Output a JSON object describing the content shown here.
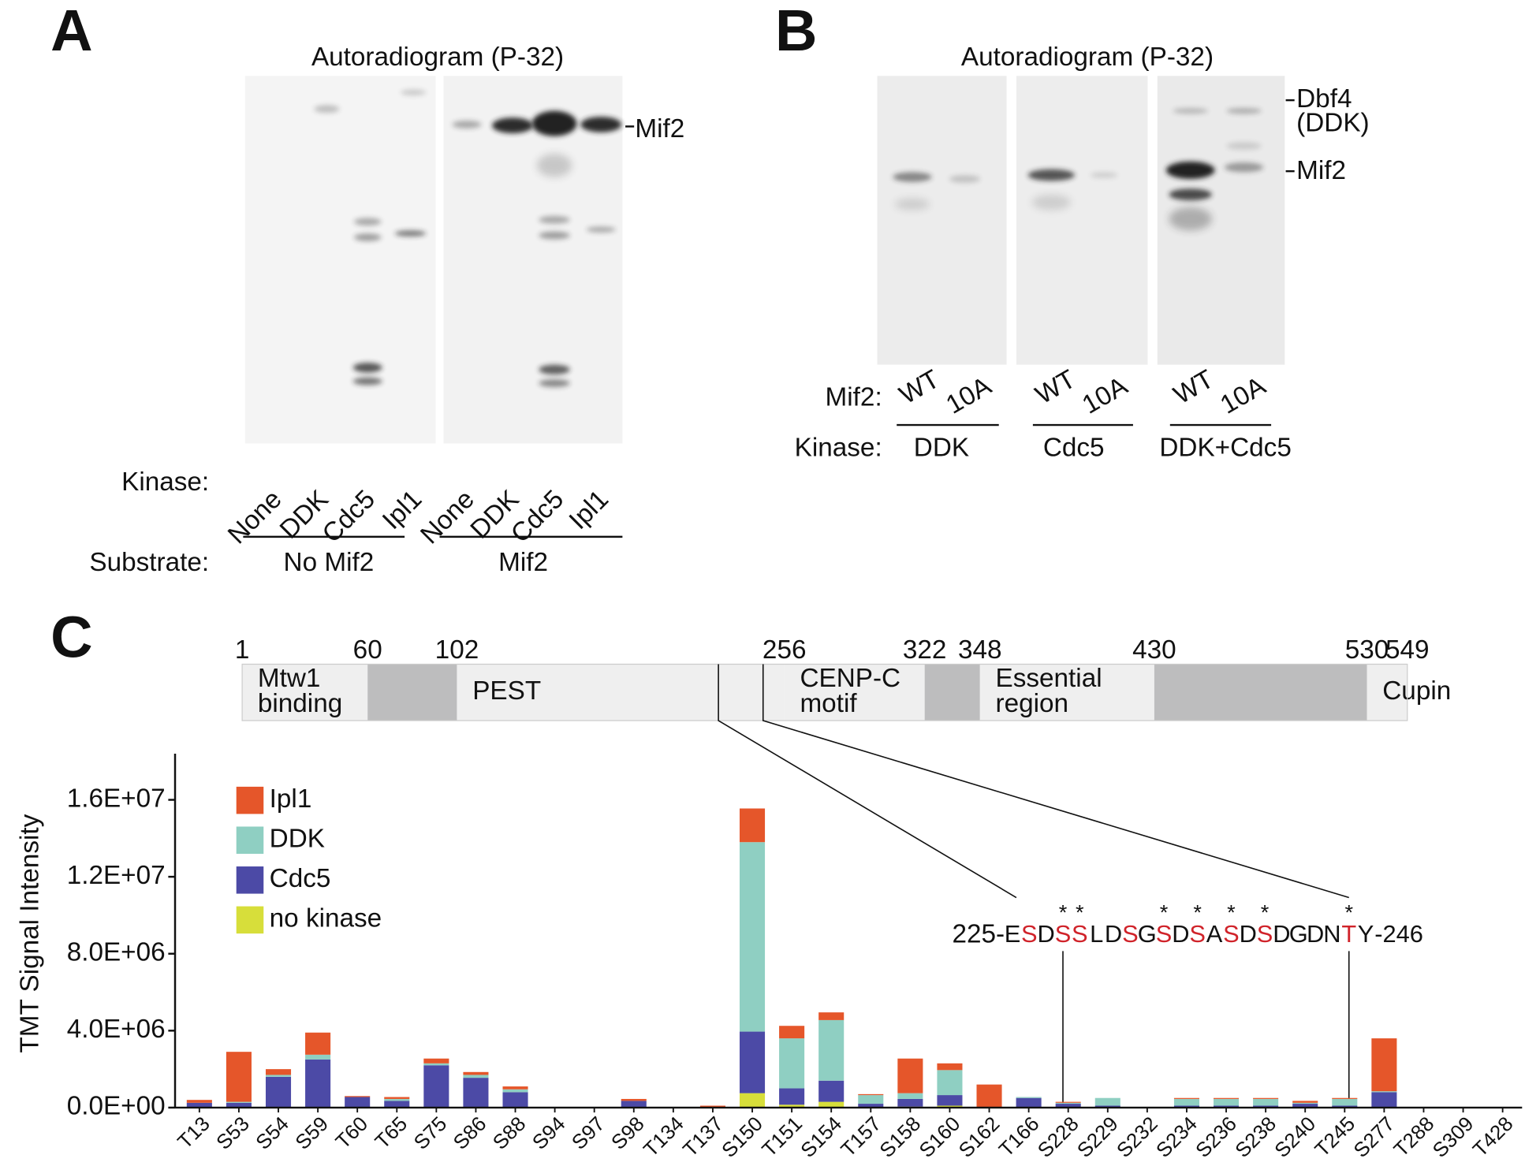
{
  "panel_a": {
    "letter": "A",
    "title": "Autoradiogram (P-32)",
    "band_label": "Mif2",
    "kinase_label": "Kinase:",
    "lanes": [
      "None",
      "DDK",
      "Cdc5",
      "Ipl1",
      "None",
      "DDK",
      "Cdc5",
      "Ipl1"
    ],
    "substrate_label": "Substrate:",
    "groups": [
      "No Mif2",
      "Mif2"
    ]
  },
  "panel_b": {
    "letter": "B",
    "title": "Autoradiogram (P-32)",
    "band_labels": [
      "Dbf4",
      "(DDK)",
      "Mif2"
    ],
    "mif2_label": "Mif2:",
    "lanes": [
      "WT",
      "10A",
      "WT",
      "10A",
      "WT",
      "10A"
    ],
    "kinase_label": "Kinase:",
    "groups": [
      "DDK",
      "Cdc5",
      "DDK+Cdc5"
    ]
  },
  "domain_map": {
    "letter": "C",
    "positions": [
      1,
      60,
      102,
      256,
      322,
      348,
      430,
      530,
      549
    ],
    "domains": [
      {
        "start": 1,
        "end": 60,
        "lines": [
          "Mtw1",
          "binding"
        ]
      },
      {
        "start": 60,
        "end": 102,
        "gray": true
      },
      {
        "start": 102,
        "end": 256,
        "lines": [
          "PEST"
        ]
      },
      {
        "start": 256,
        "end": 322,
        "lines": [
          "CENP-C",
          "motif"
        ]
      },
      {
        "start": 322,
        "end": 348,
        "gray": true
      },
      {
        "start": 348,
        "end": 430,
        "lines": [
          "Essential",
          "region"
        ]
      },
      {
        "start": 430,
        "end": 530,
        "gray": true
      },
      {
        "start": 530,
        "end": 549,
        "lines": [
          "Cupin"
        ]
      }
    ],
    "sequence": {
      "start_label": "225-",
      "end_label": "-246",
      "start": 225,
      "end": 246,
      "residues": [
        "E",
        "S",
        "D",
        "S",
        "S",
        "L",
        "D",
        "S",
        "G",
        "S",
        "D",
        "S",
        "A",
        "S",
        "D",
        "S",
        "D",
        "G",
        "D",
        "N",
        "T",
        "Y"
      ],
      "red": [
        1,
        3,
        4,
        7,
        9,
        11,
        13,
        15,
        20
      ],
      "starred": [
        3,
        4,
        9,
        11,
        13,
        15,
        20
      ],
      "star": "*",
      "red_color": "#d0232a"
    }
  },
  "chart_data": {
    "type": "stacked_bar",
    "y_label": "TMT Signal Intensity",
    "categories": [
      "T13",
      "S53",
      "S54",
      "S59",
      "T60",
      "T65",
      "S75",
      "S86",
      "S88",
      "S94",
      "S97",
      "S98",
      "T134",
      "T137",
      "S150",
      "T151",
      "S154",
      "T157",
      "S158",
      "S160",
      "S162",
      "T166",
      "S228",
      "S229",
      "S232",
      "S234",
      "S236",
      "S238",
      "S240",
      "T245",
      "S277",
      "T288",
      "S309",
      "T428"
    ],
    "series": [
      {
        "name": "Ipl1",
        "color": "#e5562a",
        "values": [
          150000,
          2600000,
          300000,
          1150000,
          50000,
          100000,
          250000,
          150000,
          150000,
          0,
          0,
          100000,
          0,
          100000,
          1750000,
          650000,
          400000,
          50000,
          1800000,
          350000,
          1200000,
          0,
          50000,
          0,
          0,
          50000,
          50000,
          50000,
          100000,
          50000,
          2750000,
          0,
          0,
          0
        ]
      },
      {
        "name": "DDK",
        "color": "#8fcfc2",
        "values": [
          0,
          50000,
          100000,
          250000,
          0,
          100000,
          100000,
          150000,
          150000,
          0,
          0,
          0,
          0,
          0,
          9850000,
          2600000,
          3150000,
          450000,
          300000,
          1300000,
          0,
          50000,
          50000,
          400000,
          0,
          350000,
          350000,
          350000,
          50000,
          350000,
          50000,
          0,
          0,
          0
        ]
      },
      {
        "name": "Cdc5",
        "color": "#4c4aa6",
        "values": [
          250000,
          250000,
          1600000,
          2500000,
          550000,
          350000,
          2200000,
          1550000,
          800000,
          0,
          0,
          350000,
          0,
          0,
          3200000,
          850000,
          1100000,
          200000,
          400000,
          550000,
          0,
          500000,
          200000,
          100000,
          0,
          100000,
          100000,
          100000,
          200000,
          100000,
          800000,
          0,
          0,
          0
        ]
      },
      {
        "name": "no kinase",
        "color": "#d7de3a",
        "values": [
          0,
          0,
          0,
          0,
          0,
          0,
          0,
          0,
          0,
          0,
          0,
          0,
          0,
          0,
          750000,
          150000,
          300000,
          0,
          50000,
          100000,
          0,
          0,
          0,
          0,
          0,
          0,
          0,
          0,
          0,
          0,
          0,
          0,
          0,
          0
        ]
      }
    ],
    "ylim": [
      0,
      18400000
    ],
    "yticks": [
      {
        "value": 0,
        "label": "0.0E+00"
      },
      {
        "value": 4000000,
        "label": "4.0E+06"
      },
      {
        "value": 8000000,
        "label": "8.0E+06"
      },
      {
        "value": 12000000,
        "label": "1.2E+07"
      },
      {
        "value": 16000000,
        "label": "1.6E+07"
      }
    ]
  }
}
